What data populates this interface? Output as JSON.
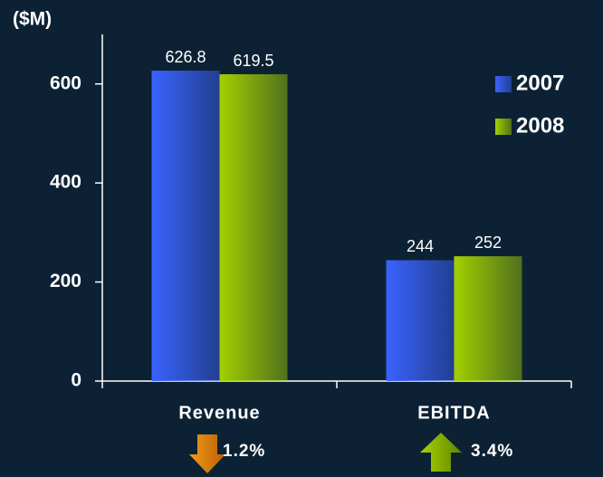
{
  "chart_data": {
    "type": "bar",
    "title": "($M)",
    "categories": [
      "Revenue",
      "EBITDA"
    ],
    "series": [
      {
        "name": "2007",
        "color": "#3a63ff",
        "values": [
          626.8,
          244
        ]
      },
      {
        "name": "2008",
        "color": "#a3d000",
        "values": [
          619.5,
          252
        ]
      }
    ],
    "ylim": [
      0,
      700
    ],
    "yticks": [
      0,
      200,
      400,
      600
    ],
    "grid": false,
    "legend": "right",
    "annotations": [
      "1.2%",
      "3.4%"
    ]
  }
}
